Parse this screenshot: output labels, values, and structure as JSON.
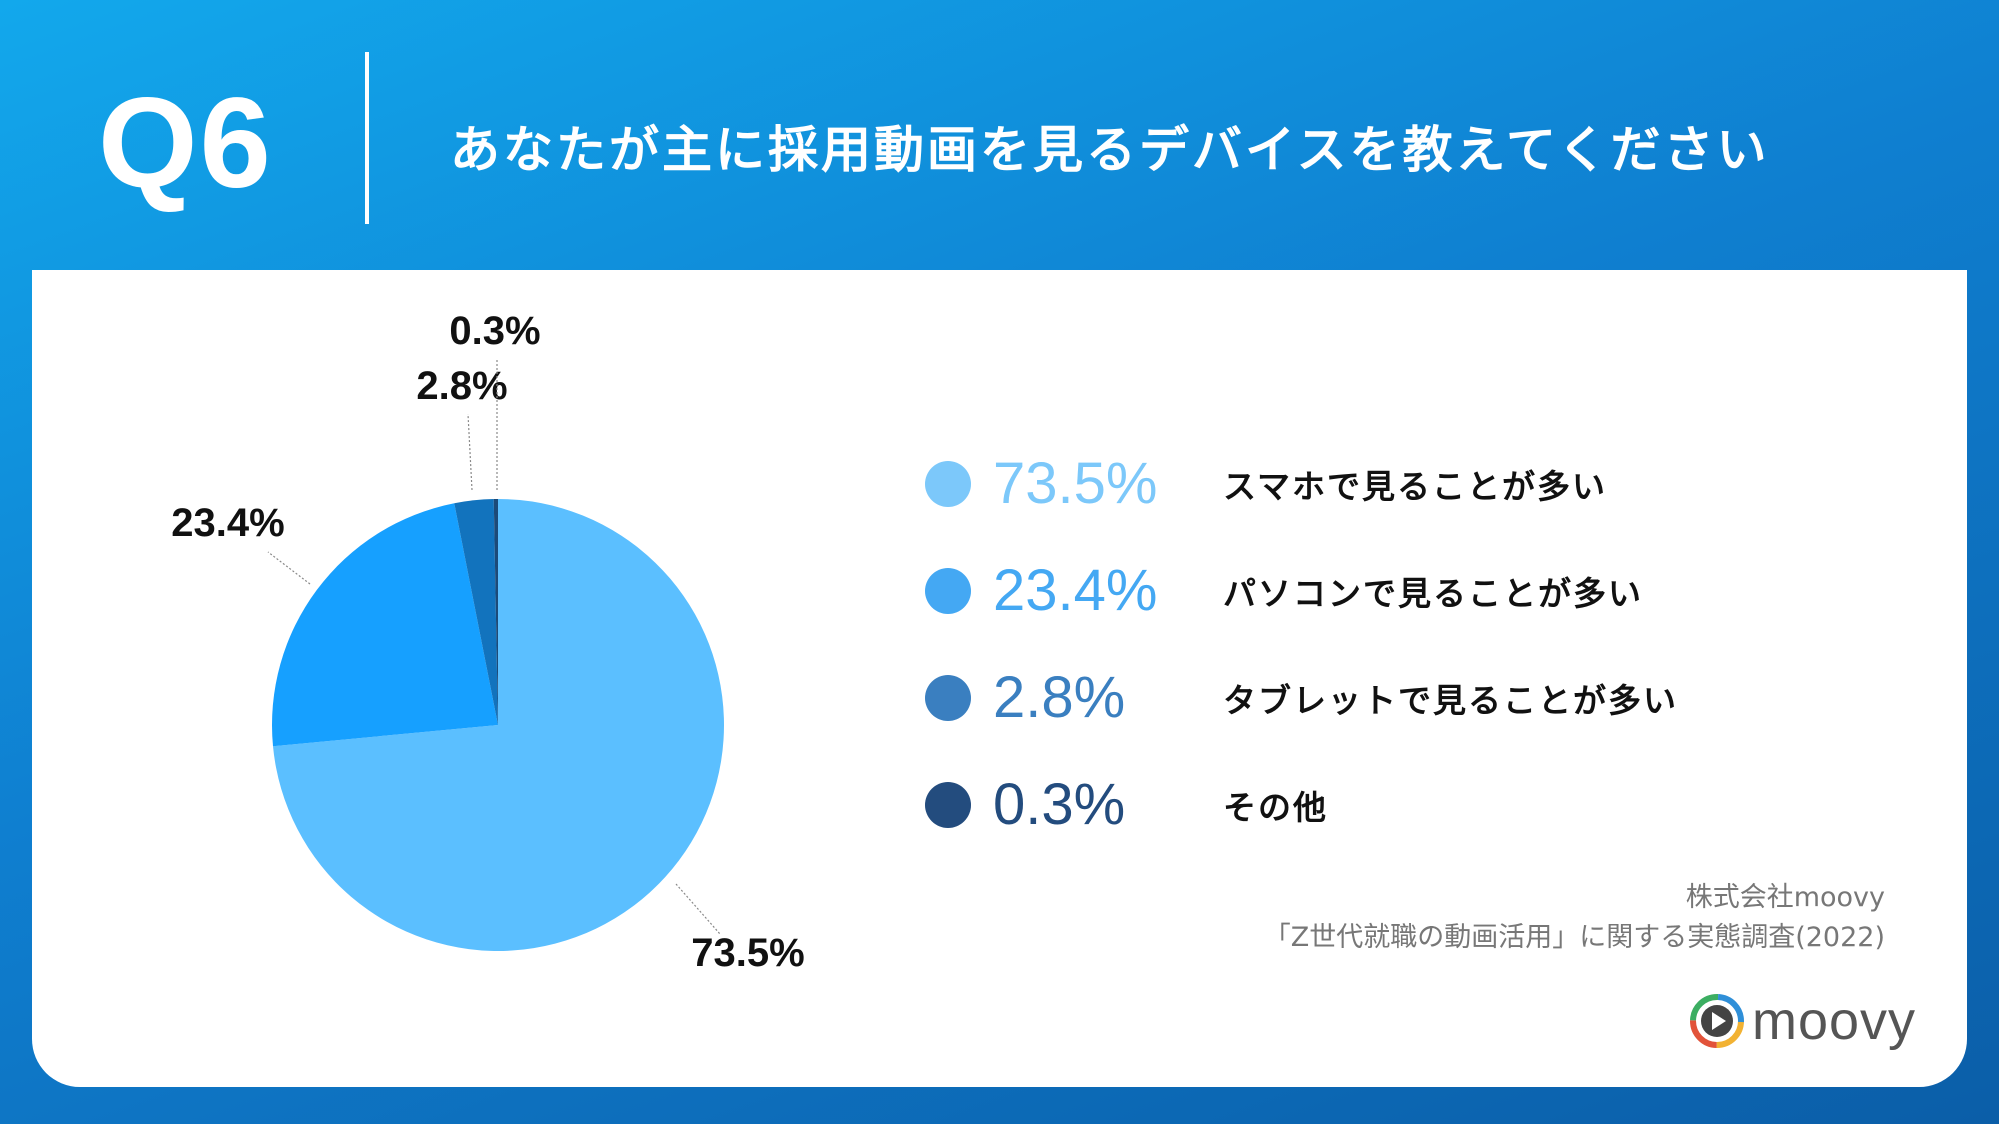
{
  "header": {
    "question_number": "Q6",
    "question_text": "あなたが主に採用動画を見るデバイスを教えてください"
  },
  "chart_data": {
    "type": "pie",
    "categories": [
      "スマホで見ることが多い",
      "パソコンで見ることが多い",
      "タブレットで見ることが多い",
      "その他"
    ],
    "values": [
      73.5,
      23.4,
      2.8,
      0.3
    ],
    "value_labels": [
      "73.5%",
      "23.4%",
      "2.8%",
      "0.3%"
    ],
    "colors": [
      "#5bbfff",
      "#16a0ff",
      "#1273bd",
      "#1c4a78"
    ],
    "legend_colors": [
      "#7cc8fa",
      "#44a8f3",
      "#3a7fc0",
      "#234c7e"
    ],
    "legend_placement": "right"
  },
  "source": {
    "line1": "株式会社moovy",
    "line2": "「Z世代就職の動画活用」に関する実態調査(2022)"
  },
  "logo": {
    "text": "moovy",
    "icon": "play-circle-icon"
  }
}
